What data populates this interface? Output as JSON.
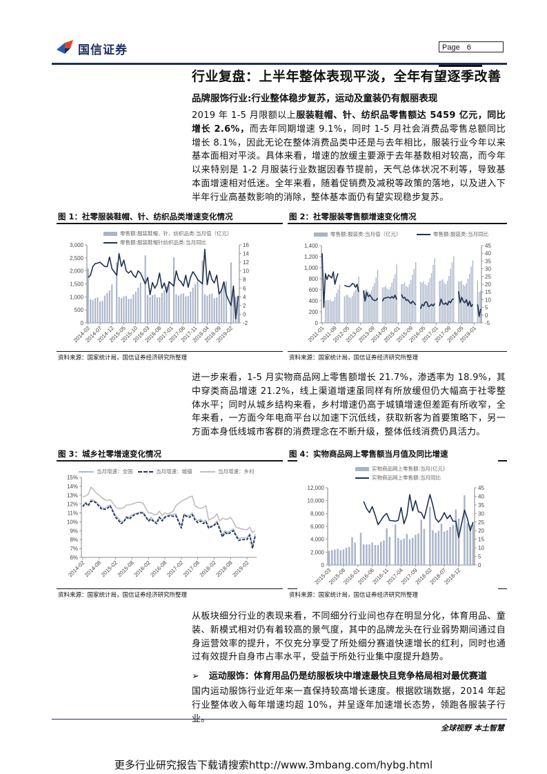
{
  "header": {
    "logo_text": "国信证券",
    "page_label": "Page",
    "page_number": "6",
    "brand_colors": {
      "navy": "#1b2f5c",
      "red": "#e0452a",
      "blue": "#2a5caa"
    }
  },
  "main": {
    "title": "行业复盘：上半年整体表现平淡，全年有望逐季改善",
    "subtitle": "品牌服饰行业:行业整体稳步复苏，运动及童装仍有靓丽表现",
    "para1": [
      "2019 年 1-5 月限额以上",
      "服装鞋帽、针、纺织品零售额达 5459 亿元，同比增长 2.6%，",
      "而去年同期增速 9.1%，同时 1-5 月社会消费品零售总额同比增长 8.1%，因此无论在整体消费品类中还是与去年相比，服装行业今年以来基本面相对平淡。具体来看，增速的放缓主要源于去年基数相对较高，而今年以来特别是 1-2 月服装行业数据因春节提前，天气总体状况不利等，导致基本面增速相对低迷。全年来看，随着促销费及减税等政策的落地，以及进入下半年行业高基数影响的消除，整体基本面仍有望实现稳步复苏。"
    ],
    "para2": "进一步来看，1-5 月实物商品网上零售额增长 21.7%，渗透率为 18.9%，其中穿类商品增速 21.2%，线上渠道增速虽同样有所放缓但仍大幅高于社零整体水平；同时从城乡结构来看，乡村增速仍高于城镇增速但差距有所收窄，全年来看，一方面今年电商平台以加速下沉低线，获取新客为首要策略下，另一方面本身低线城市客群的消费理念在不断升级，整体低线消费仍具活力。",
    "para3": "从板块细分行业的表现来看，不同细分行业间也存在明显分化，体育用品、童装、新模式相对仍有着较高的景气度，其中的品牌龙头在行业弱势期间通过自身运营效率的提升，不仅充分享受了所处细分赛道快速增长的红利，同时也通过有效提升自身市占率水平，受益于所处行业集中度提升趋势。",
    "bullet_heading": "运动服饰：体育用品仍是纺服板块中增速最快且竞争格局相对最优赛道",
    "para4": "国内运动服饰行业近年来一直保持较高增长速度。根据欧瑞数据，2014 年起行业整体收入每年增速均超 10%，并呈逐年加速增长态势，领跑各服装子行业。"
  },
  "figures": [
    {
      "title": "图 1：社零服装鞋帽、针、纺织品类增速变化情况",
      "source": "资料来源：国家统计局，国信证券经济研究所整理"
    },
    {
      "title": "图 2：社零服装零售额增速变化情况",
      "source": "资料来源：国家统计局，国信证券经济研究所整理"
    },
    {
      "title": "图 3：城乡社零增速变化情况",
      "source": "资料来源：国家统计局，国信证券经济研究所整理"
    },
    {
      "title": "图 4：实物商品网上零售额当月值及同比增速",
      "source": "资料来源：国家统计局，国信证券经济研究所整理"
    }
  ],
  "footer": {
    "motto": "全球视野  本土智慧",
    "watermark": "更多行业研究报告下载请搜索http://www.3mbang.com/hybg.html"
  },
  "chart_data": [
    {
      "type": "bar+line",
      "frequency": "monthly",
      "x_range": [
        "2014-02",
        "2019-05"
      ],
      "xtick_labels": [
        "2014-02",
        "2014-07",
        "2014-12",
        "2015-05",
        "2015-10",
        "2016-03",
        "2016-08",
        "2017-01",
        "2017-06",
        "2017-11",
        "2018-04",
        "2018-09",
        "2019-02"
      ],
      "ylim": [
        0,
        3000
      ],
      "ytick_labels": [
        "0",
        "500",
        "1,000",
        "1,500",
        "2,000",
        "2,500",
        "3,000"
      ],
      "y2lim": [
        -2,
        16
      ],
      "y2tick_labels": [
        "-2",
        "0",
        "2",
        "4",
        "6",
        "8",
        "10",
        "12",
        "14",
        "16"
      ],
      "legend_position": "top",
      "grid": false,
      "series": [
        {
          "name": "零售额:服装鞋帽、针、纺织品类:当月值（亿元）",
          "type": "bar",
          "axis": "left",
          "color": "#a9b4c8",
          "values": [
            2100,
            900,
            880,
            950,
            980,
            820,
            850,
            1050,
            1150,
            1250,
            1480,
            null,
            2320,
            1000,
            950,
            1020,
            1040,
            920,
            930,
            1100,
            1200,
            1350,
            1550,
            null,
            2600,
            1070,
            1000,
            1060,
            1090,
            980,
            980,
            1150,
            1250,
            1400,
            1600,
            null,
            2520,
            1100,
            1050,
            1110,
            1130,
            1020,
            1030,
            1200,
            1350,
            1500,
            1650,
            null,
            2400,
            1100,
            1050,
            1100,
            1130,
            950,
            980,
            1150,
            1300,
            1450,
            1600,
            null,
            2330,
            1100,
            1000,
            1050
          ]
        },
        {
          "name": "零售额:服装鞋帽针纺织品类:当月同比",
          "type": "line",
          "axis": "right",
          "color": "#1f2f4f",
          "values": [
            8.5,
            9,
            11,
            11.7,
            11.8,
            12,
            11.5,
            11,
            11,
            13.2,
            10.5,
            null,
            9,
            14,
            11,
            12.5,
            10,
            9.5,
            10,
            9,
            8.5,
            10,
            9.5,
            null,
            7,
            8.5,
            4.5,
            7.3,
            6,
            7,
            9.5,
            6,
            7.2,
            5,
            7.5,
            null,
            6.5,
            10,
            8,
            7.5,
            6.5,
            9,
            6.2,
            8.5,
            9.8,
            9,
            8,
            null,
            7,
            15,
            6.8,
            10,
            8,
            7.2,
            9,
            4.7,
            5.5,
            7.5,
            4.5,
            null,
            2,
            6.5,
            -1.1,
            4.2
          ]
        }
      ]
    },
    {
      "type": "bar+line",
      "frequency": "monthly",
      "x_range": [
        "2011-01",
        "2019-05"
      ],
      "xtick_labels": [
        "2011-01",
        "2011-09",
        "2012-05",
        "2013-01",
        "2013-09",
        "2014-05",
        "2015-01",
        "2015-09",
        "2016-05",
        "2017-01",
        "2017-09",
        "2018-05",
        "2019-01"
      ],
      "ylim": [
        0,
        1400
      ],
      "ytick_labels": [
        "0",
        "200",
        "400",
        "600",
        "800",
        "1,000",
        "1,200",
        "1,400"
      ],
      "y2lim": [
        -5,
        45
      ],
      "y2tick_labels": [
        "-5",
        "0",
        "5",
        "10",
        "15",
        "20",
        "25",
        "30",
        "35",
        "40",
        "45"
      ],
      "legend_position": "top",
      "grid": false,
      "series": [
        {
          "name": "零售额:服装类:当月值（亿元）",
          "type": "bar",
          "axis": "left",
          "color": "#a9b4c8",
          "values": [
            null,
            null,
            400,
            420,
            410,
            420,
            390,
            400,
            470,
            540,
            600,
            690,
            null,
            null,
            480,
            500,
            510,
            470,
            450,
            490,
            560,
            600,
            700,
            840,
            null,
            null,
            560,
            600,
            610,
            570,
            540,
            590,
            660,
            720,
            820,
            960,
            null,
            null,
            640,
            650,
            670,
            620,
            600,
            650,
            730,
            800,
            880,
            1060,
            null,
            null,
            700,
            710,
            730,
            670,
            650,
            700,
            780,
            870,
            980,
            1100,
            null,
            null,
            740,
            730,
            750,
            700,
            680,
            730,
            810,
            900,
            1050,
            1170,
            null,
            null,
            760,
            770,
            790,
            730,
            700,
            760,
            850,
            980,
            1100,
            1210,
            null,
            null,
            750,
            750,
            760,
            690,
            670,
            720,
            800,
            890,
            1020,
            1130,
            null,
            null,
            770,
            560,
            580
          ]
        },
        {
          "name": "零售额:服装类:当月同比",
          "type": "line",
          "axis": "right",
          "color": "#1f2f4f",
          "values": [
            40,
            5,
            27,
            23,
            26,
            25,
            24,
            28,
            20,
            24,
            27,
            null,
            null,
            null,
            19,
            19,
            18.5,
            18.5,
            19,
            20.5,
            20,
            18,
            20,
            15,
            null,
            null,
            16,
            9,
            15,
            12,
            13,
            11.5,
            10,
            9.5,
            9.5,
            11,
            null,
            null,
            9,
            11,
            11,
            11.5,
            11.5,
            11,
            12,
            11,
            13,
            10,
            null,
            null,
            13.5,
            11,
            11.5,
            9.5,
            10,
            8.5,
            7.5,
            9,
            8,
            6.5,
            null,
            null,
            4,
            7,
            6,
            8.5,
            8.5,
            5.5,
            6,
            7,
            6,
            7.5,
            null,
            null,
            6,
            10.5,
            7.5,
            7,
            8,
            6.5,
            9,
            8,
            10,
            10.5,
            null,
            null,
            15.5,
            8,
            11.5,
            9,
            8,
            10,
            6,
            9,
            5.5,
            7,
            null,
            null,
            7,
            -1,
            4
          ]
        }
      ]
    },
    {
      "type": "line",
      "frequency": "monthly",
      "x_range": [
        "2014-02",
        "2019-05"
      ],
      "xtick_labels": [
        "2014-02",
        "2014-08",
        "2015-02",
        "2015-08",
        "2016-02",
        "2016-08",
        "2017-02",
        "2017-08",
        "2018-02",
        "2018-08",
        "2019-02"
      ],
      "ylim": [
        6,
        15
      ],
      "ytick_labels": [
        "6%",
        "7%",
        "8%",
        "9%",
        "10%",
        "11%",
        "12%",
        "13%",
        "14%",
        "15%"
      ],
      "legend_position": "top",
      "grid": false,
      "series": [
        {
          "name": "当月增速：全国",
          "type": "line",
          "axis": "left",
          "color": "#a8b9cf",
          "values": [
            11.8,
            12.2,
            11.9,
            12.5,
            12.4,
            12.2,
            11.9,
            11.6,
            11.5,
            11.7,
            11.9,
            null,
            10.7,
            10.4,
            10.0,
            10.1,
            10.6,
            10.5,
            10.8,
            10.9,
            11.0,
            11.1,
            11.1,
            null,
            10.2,
            10.5,
            10.1,
            10.0,
            10.6,
            10.2,
            10.6,
            10.7,
            10.8,
            10.8,
            10.9,
            null,
            9.5,
            10.9,
            10.7,
            10.7,
            11.0,
            10.4,
            10.1,
            10.3,
            10.0,
            10.2,
            9.4,
            null,
            9.7,
            10.1,
            9.4,
            8.5,
            9.0,
            8.8,
            9.0,
            9.2,
            8.6,
            8.1,
            8.2,
            null,
            8.2,
            8.7,
            7.2,
            8.6
          ]
        },
        {
          "name": "当月增速：城镇",
          "type": "line",
          "dashed": true,
          "axis": "left",
          "color": "#1f2f4f",
          "values": [
            11.7,
            12.1,
            11.8,
            12.3,
            12.3,
            12.1,
            11.7,
            11.4,
            11.4,
            11.5,
            11.8,
            null,
            10.5,
            10.2,
            9.8,
            10.0,
            10.5,
            10.3,
            10.6,
            10.8,
            10.9,
            11.0,
            11.0,
            null,
            10.1,
            10.3,
            10.0,
            9.8,
            10.5,
            10.1,
            10.5,
            10.6,
            10.7,
            10.6,
            10.7,
            null,
            9.3,
            10.8,
            10.6,
            10.5,
            10.8,
            10.2,
            9.9,
            10.1,
            9.8,
            10.0,
            9.3,
            null,
            9.6,
            9.9,
            9.2,
            8.3,
            8.8,
            8.6,
            8.8,
            9.0,
            8.4,
            7.9,
            8.0,
            null,
            8.0,
            8.5,
            7.0,
            8.4
          ]
        },
        {
          "name": "当月增速：乡村",
          "type": "line",
          "axis": "left",
          "color": "#bdbdbd",
          "values": [
            12.8,
            12.9,
            13.1,
            13.9,
            13.6,
            13.2,
            13.0,
            12.7,
            12.5,
            12.4,
            12.5,
            null,
            11.7,
            11.5,
            11.5,
            11.6,
            11.9,
            11.9,
            12.0,
            12.1,
            12.2,
            12.2,
            12.1,
            null,
            11.0,
            11.0,
            10.8,
            10.8,
            11.2,
            10.7,
            11.0,
            10.9,
            11.0,
            11.2,
            11.8,
            null,
            12.3,
            12.5,
            12.6,
            12.8,
            12.9,
            11.8,
            11.6,
            11.5,
            11.6,
            11.8,
            10.2,
            null,
            10.5,
            10.9,
            10.1,
            10.4,
            10.3,
            10.3,
            10.5,
            10.0,
            9.4,
            9.3,
            9.2,
            null,
            9.1,
            9.4,
            8.8,
            9.0
          ]
        }
      ]
    },
    {
      "type": "bar+line",
      "frequency": "monthly",
      "x_range": [
        "2015-03",
        "2019-05"
      ],
      "xtick_labels": [
        "2015-03",
        "2015-08",
        "2016-01",
        "2016-06",
        "2016-11",
        "2017-04",
        "2017-09",
        "2018-02",
        "2018-07",
        "2018-12"
      ],
      "ylim": [
        0,
        12000
      ],
      "ytick_labels": [
        "0",
        "2,000",
        "4,000",
        "6,000",
        "8,000",
        "10,000",
        "12,000"
      ],
      "y2lim": [
        0,
        45
      ],
      "y2tick_labels": [
        "0",
        "5",
        "10",
        "15",
        "20",
        "25",
        "30",
        "35",
        "40",
        "45"
      ],
      "legend_position": "top",
      "grid": false,
      "series": [
        {
          "name": "实物商品网上零售额:当月(亿元)",
          "type": "bar",
          "axis": "left",
          "color": "#a9b4c8",
          "values": [
            2200,
            2300,
            2400,
            2500,
            2300,
            2400,
            2700,
            2800,
            4300,
            3500,
            null,
            5000,
            3200,
            3200,
            3200,
            3500,
            3100,
            3100,
            3600,
            3800,
            5700,
            4400,
            null,
            6300,
            4200,
            3900,
            4100,
            4800,
            4000,
            4200,
            4700,
            4900,
            7000,
            5600,
            null,
            9000,
            5400,
            5000,
            5300,
            6400,
            5200,
            5400,
            5900,
            6200,
            8600,
            7200,
            null,
            10800,
            6500,
            6200,
            6300
          ]
        },
        {
          "name": "实物商品网上零售额:当月同比",
          "type": "line",
          "axis": "right",
          "color": "#1f2f4f",
          "values": [
            null,
            null,
            null,
            null,
            null,
            null,
            null,
            null,
            null,
            null,
            null,
            null,
            37,
            33,
            30.5,
            34,
            29,
            23.5,
            26,
            28.5,
            30,
            26,
            null,
            25.5,
            26,
            33.5,
            24,
            29,
            41,
            31.5,
            37.5,
            31,
            30.5,
            27,
            null,
            41,
            35,
            27,
            25,
            27,
            30.5,
            27,
            29,
            25.5,
            25.5,
            16,
            null,
            32,
            27,
            20,
            25
          ]
        }
      ]
    }
  ]
}
